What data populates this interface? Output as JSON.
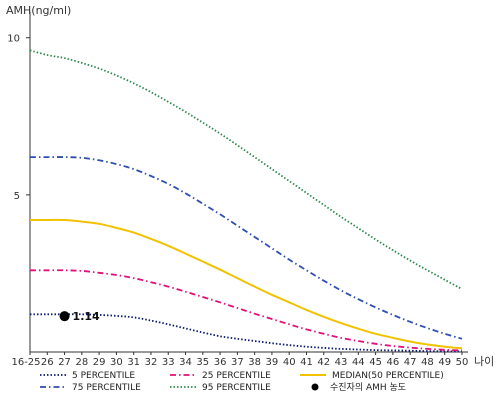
{
  "chart_data": {
    "type": "line",
    "ylabel": "AMH(ng/ml)",
    "xlabel": "나이",
    "categories": [
      "16-25",
      "26",
      "27",
      "28",
      "29",
      "30",
      "31",
      "32",
      "33",
      "34",
      "35",
      "36",
      "37",
      "38",
      "39",
      "40",
      "41",
      "42",
      "43",
      "44",
      "45",
      "46",
      "47",
      "48",
      "49",
      "50"
    ],
    "ylim": [
      0,
      10.5
    ],
    "yticks": [
      5,
      10
    ],
    "grid": false,
    "legend_position": "bottom",
    "series": [
      {
        "name": "5 PERCENTILE",
        "color": "#0b1a6e",
        "style": "dotted",
        "values": [
          1.2,
          1.2,
          1.2,
          1.2,
          1.18,
          1.15,
          1.1,
          1.0,
          0.88,
          0.75,
          0.62,
          0.5,
          0.42,
          0.35,
          0.28,
          0.22,
          0.17,
          0.13,
          0.1,
          0.08,
          0.06,
          0.05,
          0.04,
          0.03,
          0.02,
          0.02
        ]
      },
      {
        "name": "25 PERCENTILE",
        "color": "#e0107a",
        "style": "dashdot",
        "values": [
          2.6,
          2.6,
          2.6,
          2.58,
          2.52,
          2.45,
          2.35,
          2.22,
          2.08,
          1.92,
          1.75,
          1.58,
          1.4,
          1.22,
          1.05,
          0.88,
          0.72,
          0.58,
          0.45,
          0.35,
          0.26,
          0.19,
          0.14,
          0.1,
          0.07,
          0.05
        ]
      },
      {
        "name": "MEDIAN(50 PERCENTILE)",
        "color": "#f2c200",
        "style": "solid",
        "values": [
          4.2,
          4.2,
          4.2,
          4.15,
          4.08,
          3.95,
          3.8,
          3.6,
          3.38,
          3.13,
          2.88,
          2.62,
          2.35,
          2.08,
          1.82,
          1.58,
          1.34,
          1.12,
          0.92,
          0.74,
          0.58,
          0.45,
          0.33,
          0.24,
          0.17,
          0.12
        ]
      },
      {
        "name": "75 PERCENTILE",
        "color": "#2f4fb0",
        "style": "dashdot",
        "values": [
          6.2,
          6.2,
          6.2,
          6.18,
          6.1,
          5.98,
          5.82,
          5.6,
          5.35,
          5.05,
          4.72,
          4.38,
          4.02,
          3.66,
          3.3,
          2.94,
          2.6,
          2.27,
          1.96,
          1.68,
          1.42,
          1.18,
          0.96,
          0.76,
          0.58,
          0.42
        ]
      },
      {
        "name": "95 PERCENTILE",
        "color": "#2e8a4e",
        "style": "dotted",
        "values": [
          9.6,
          9.45,
          9.35,
          9.2,
          9.02,
          8.8,
          8.55,
          8.27,
          7.96,
          7.64,
          7.3,
          6.95,
          6.58,
          6.2,
          5.82,
          5.44,
          5.06,
          4.68,
          4.3,
          3.94,
          3.58,
          3.24,
          2.91,
          2.6,
          2.3,
          2.0
        ]
      }
    ],
    "patient": {
      "label": "수진자의 AMH 농도",
      "x": "27",
      "value": 1.14,
      "value_label": "1.14"
    }
  }
}
